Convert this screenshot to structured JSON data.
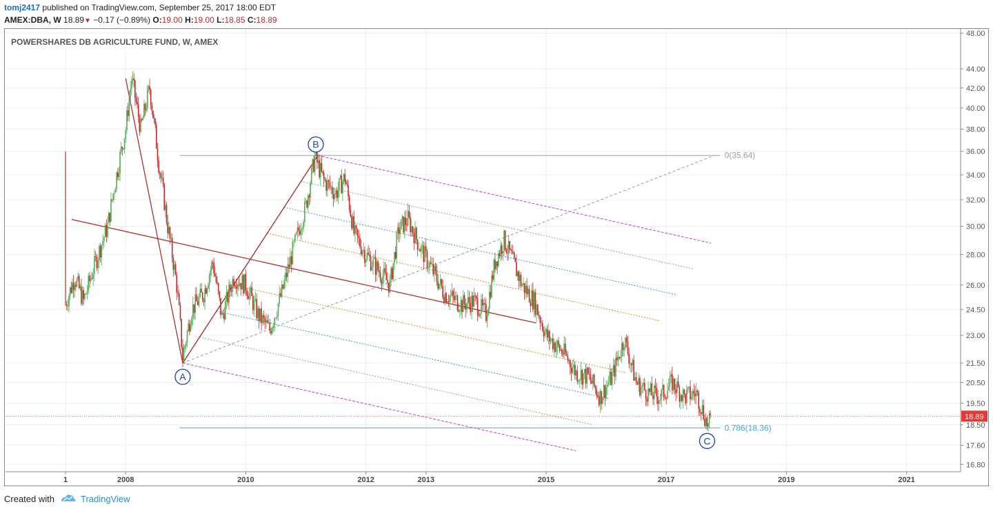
{
  "header": {
    "user": "tomj2417",
    "published": "published on TradingView.com, September 25, 2017 18:00 EDT",
    "symbol": "AMEX:DBA, W",
    "last": "18.89",
    "change": "−0.17 (−0.89%)",
    "o_label": "O:",
    "o_val": "19.00",
    "h_label": "H:",
    "h_val": "19.00",
    "l_label": "L:",
    "l_val": "18.85",
    "c_label": "C:",
    "c_val": "18.89"
  },
  "footer": {
    "created_with": "Created with",
    "brand": "TradingView",
    "logo_icon": "tradingview-cloud-logo"
  },
  "colors": {
    "up": "#4caf50",
    "down": "#c62828",
    "price_line": "#e57373",
    "fib_line": "#4aa3df",
    "grid": "#eeeeee"
  },
  "chart_data": {
    "type": "candlestick",
    "title": "POWERSHARES DB AGRICULTURE FUND, W, AMEX",
    "scale": "log",
    "grid": true,
    "y_ticks": [
      "48.00",
      "44.00",
      "42.00",
      "40.00",
      "38.00",
      "36.00",
      "34.00",
      "32.00",
      "30.00",
      "28.00",
      "26.00",
      "24.50",
      "23.00",
      "21.50",
      "20.50",
      "19.50",
      "18.50",
      "17.60",
      "16.80"
    ],
    "x_ticks": [
      "1",
      "2008",
      "2010",
      "2012",
      "2013",
      "2015",
      "2017",
      "2019",
      "2021"
    ],
    "ylim": [
      16.5,
      48.5
    ],
    "xlim": [
      2006.0,
      2021.9
    ],
    "last_price_label": "18.89",
    "last_price": 18.89,
    "price_path": [
      [
        2007.0,
        24.8
      ],
      [
        2007.15,
        26.5
      ],
      [
        2007.3,
        25.0
      ],
      [
        2007.5,
        27.5
      ],
      [
        2007.7,
        30.0
      ],
      [
        2007.85,
        34.0
      ],
      [
        2008.0,
        38.0
      ],
      [
        2008.1,
        43.0
      ],
      [
        2008.25,
        38.0
      ],
      [
        2008.4,
        42.0
      ],
      [
        2008.55,
        35.0
      ],
      [
        2008.7,
        30.0
      ],
      [
        2008.85,
        26.0
      ],
      [
        2008.95,
        21.8
      ],
      [
        2009.1,
        24.5
      ],
      [
        2009.3,
        25.5
      ],
      [
        2009.45,
        27.5
      ],
      [
        2009.6,
        24.0
      ],
      [
        2009.8,
        26.5
      ],
      [
        2010.0,
        26.0
      ],
      [
        2010.2,
        24.2
      ],
      [
        2010.4,
        23.3
      ],
      [
        2010.6,
        25.5
      ],
      [
        2010.8,
        28.5
      ],
      [
        2011.0,
        31.5
      ],
      [
        2011.15,
        35.5
      ],
      [
        2011.3,
        33.5
      ],
      [
        2011.5,
        32.5
      ],
      [
        2011.65,
        33.8
      ],
      [
        2011.8,
        29.5
      ],
      [
        2012.0,
        28.0
      ],
      [
        2012.2,
        27.0
      ],
      [
        2012.4,
        26.0
      ],
      [
        2012.55,
        29.8
      ],
      [
        2012.7,
        30.5
      ],
      [
        2012.9,
        28.5
      ],
      [
        2013.1,
        27.0
      ],
      [
        2013.3,
        25.5
      ],
      [
        2013.6,
        24.8
      ],
      [
        2013.8,
        25.0
      ],
      [
        2014.0,
        24.2
      ],
      [
        2014.15,
        27.5
      ],
      [
        2014.3,
        29.0
      ],
      [
        2014.45,
        27.5
      ],
      [
        2014.6,
        26.0
      ],
      [
        2014.8,
        25.0
      ],
      [
        2015.0,
        23.0
      ],
      [
        2015.3,
        22.0
      ],
      [
        2015.5,
        21.0
      ],
      [
        2015.7,
        20.8
      ],
      [
        2015.9,
        19.8
      ],
      [
        2016.1,
        20.8
      ],
      [
        2016.3,
        22.8
      ],
      [
        2016.5,
        20.5
      ],
      [
        2016.7,
        20.0
      ],
      [
        2016.9,
        19.8
      ],
      [
        2017.1,
        20.5
      ],
      [
        2017.3,
        19.8
      ],
      [
        2017.5,
        20.0
      ],
      [
        2017.7,
        18.4
      ],
      [
        2017.75,
        18.89
      ]
    ],
    "annotations": [
      {
        "label": "A",
        "x": 2008.95,
        "price": 21.5
      },
      {
        "label": "B",
        "x": 2011.2,
        "price": 35.64
      },
      {
        "label": "C",
        "x": 2017.68,
        "price": 18.36
      }
    ],
    "fib_levels": [
      {
        "label": "0(35.64)",
        "price": 35.64
      },
      {
        "label": "0.786(18.36)",
        "price": 18.36
      }
    ],
    "pitchfork": {
      "pivot": [
        2007.1,
        30.5
      ],
      "b": [
        2011.2,
        35.64
      ],
      "c": [
        2008.95,
        21.5
      ]
    }
  }
}
